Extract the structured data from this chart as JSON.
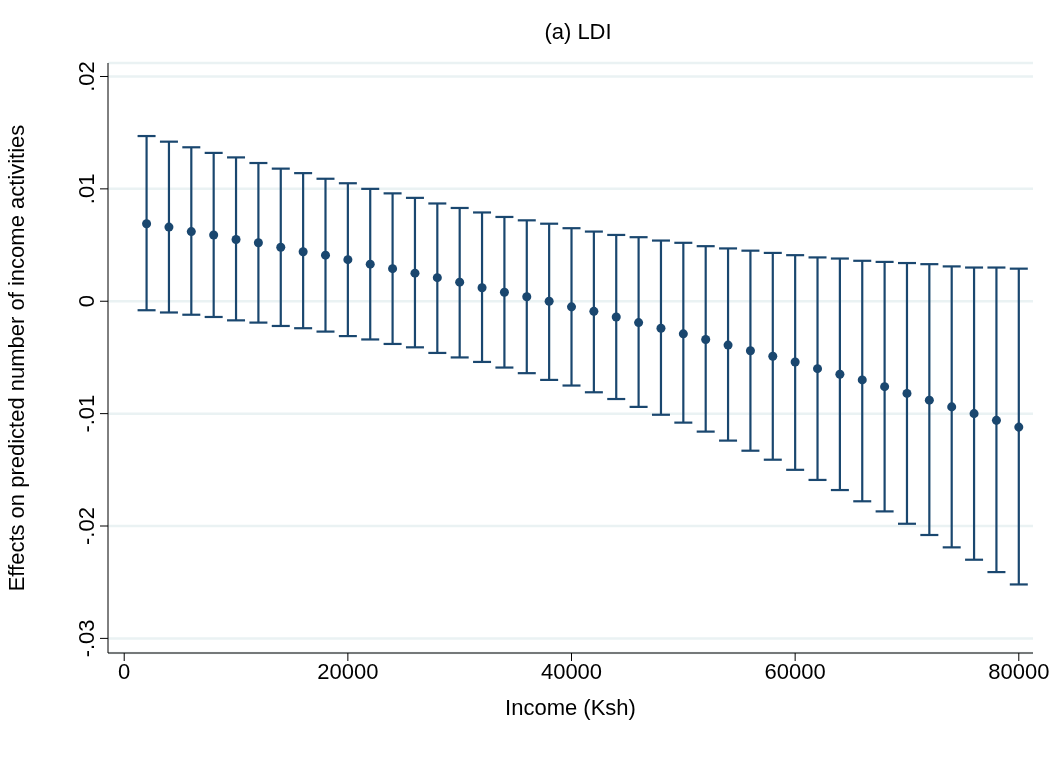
{
  "chart_data": {
    "type": "scatter",
    "title": "(a) LDI",
    "xlabel": "Income (Ksh)",
    "ylabel": "Effects on predicted number of income activities",
    "x": [
      2000,
      4000,
      6000,
      8000,
      10000,
      12000,
      14000,
      16000,
      18000,
      20000,
      22000,
      24000,
      26000,
      28000,
      30000,
      32000,
      34000,
      36000,
      38000,
      40000,
      42000,
      44000,
      46000,
      48000,
      50000,
      52000,
      54000,
      56000,
      58000,
      60000,
      62000,
      64000,
      66000,
      68000,
      70000,
      72000,
      74000,
      76000,
      78000,
      80000
    ],
    "series": [
      {
        "color": "#1a476f",
        "values": [
          0.0069,
          0.0066,
          0.0062,
          0.0059,
          0.0055,
          0.0052,
          0.0048,
          0.0044,
          0.0041,
          0.0037,
          0.0033,
          0.0029,
          0.0025,
          0.0021,
          0.0017,
          0.0012,
          0.0008,
          0.0004,
          0,
          -0.0005,
          -0.0009,
          -0.0014,
          -0.0019,
          -0.0024,
          -0.0029,
          -0.0034,
          -0.0039,
          -0.0044,
          -0.0049,
          -0.0054,
          -0.006,
          -0.0065,
          -0.007,
          -0.0076,
          -0.0082,
          -0.0088,
          -0.0094,
          -0.01,
          -0.0106,
          -0.0112
        ],
        "errors": [
          [
            -0.0008,
            0.0147
          ],
          [
            -0.001,
            0.0142
          ],
          [
            -0.0012,
            0.0137
          ],
          [
            -0.0014,
            0.0132
          ],
          [
            -0.0017,
            0.0128
          ],
          [
            -0.0019,
            0.0123
          ],
          [
            -0.0022,
            0.0118
          ],
          [
            -0.0024,
            0.0114
          ],
          [
            -0.0027,
            0.0109
          ],
          [
            -0.0031,
            0.0105
          ],
          [
            -0.0034,
            0.01
          ],
          [
            -0.0038,
            0.0096
          ],
          [
            -0.0041,
            0.0092
          ],
          [
            -0.0046,
            0.0087
          ],
          [
            -0.005,
            0.0083
          ],
          [
            -0.0054,
            0.0079
          ],
          [
            -0.0059,
            0.0075
          ],
          [
            -0.0064,
            0.0072
          ],
          [
            -0.007,
            0.0069
          ],
          [
            -0.0075,
            0.0065
          ],
          [
            -0.0081,
            0.0062
          ],
          [
            -0.0087,
            0.0059
          ],
          [
            -0.0094,
            0.0057
          ],
          [
            -0.0101,
            0.0054
          ],
          [
            -0.0108,
            0.0052
          ],
          [
            -0.0116,
            0.0049
          ],
          [
            -0.0124,
            0.0047
          ],
          [
            -0.0133,
            0.0045
          ],
          [
            -0.0141,
            0.0043
          ],
          [
            -0.015,
            0.0041
          ],
          [
            -0.0159,
            0.0039
          ],
          [
            -0.0168,
            0.0038
          ],
          [
            -0.0178,
            0.0036
          ],
          [
            -0.0187,
            0.0035
          ],
          [
            -0.0198,
            0.0034
          ],
          [
            -0.0208,
            0.0033
          ],
          [
            -0.0219,
            0.0031
          ],
          [
            -0.023,
            0.003
          ],
          [
            -0.0241,
            0.003
          ],
          [
            -0.0252,
            0.0029
          ]
        ]
      }
    ],
    "xlim": [
      -1450,
      81270
    ],
    "xticks": [
      0,
      20000,
      40000,
      60000,
      80000
    ],
    "ylim": [
      -0.0313,
      0.0212
    ],
    "yticks": [
      {
        "value": -0.03,
        "label": "-.03"
      },
      {
        "value": -0.02,
        "label": "-.02"
      },
      {
        "value": -0.01,
        "label": "-.01"
      },
      0,
      {
        "value": 0.01,
        "label": ".01"
      },
      {
        "value": 0.02,
        "label": ".02"
      }
    ],
    "grid": "y",
    "marker": "circle"
  }
}
